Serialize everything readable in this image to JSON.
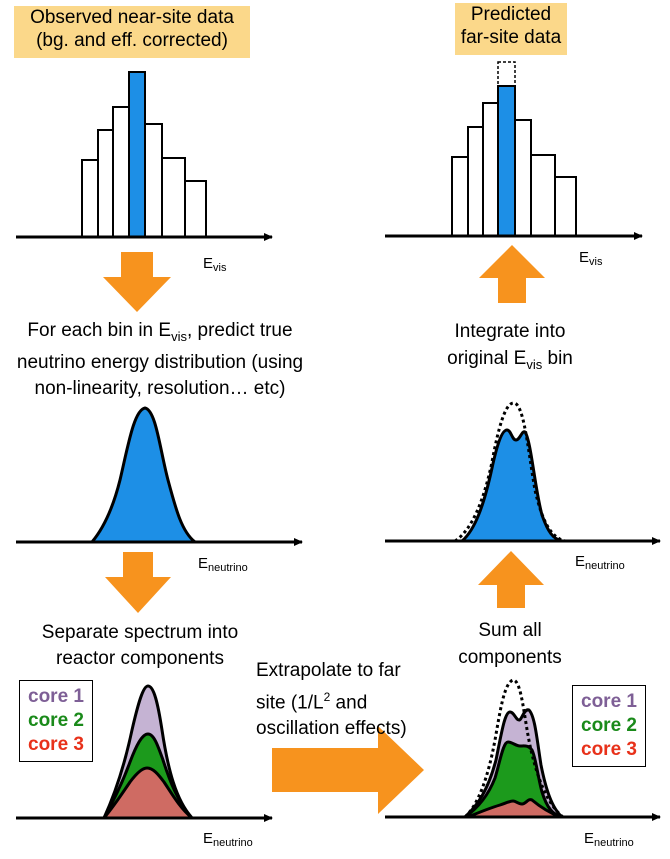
{
  "boxes": {
    "near_title_1": "Observed near-site data",
    "near_title_2": "(bg. and eff. corrected)",
    "far_title_1": "Predicted",
    "far_title_2": "far-site data"
  },
  "axes": {
    "evis_main": "E",
    "evis_sub": "vis",
    "eneu_main": "E",
    "eneu_sub": "neutrino"
  },
  "steps": {
    "predict_1a": "For each bin in E",
    "predict_1b": "vis",
    "predict_1c": ", predict true",
    "predict_2": "neutrino energy distribution (using",
    "predict_3": "non-linearity, resolution… etc)",
    "integrate_1": "Integrate into",
    "integrate_2a": "original E",
    "integrate_2b": "vis",
    "integrate_2c": " bin",
    "separate_1": "Separate spectrum into",
    "separate_2": "reactor components",
    "sum_1": "Sum all",
    "sum_2": "components",
    "extrap_1": "Extrapolate to far",
    "extrap_2a": "site (1/L",
    "extrap_2b": "2",
    "extrap_2c": " and",
    "extrap_3": "oscillation effects)"
  },
  "legend": {
    "items": [
      "core 1",
      "core 2",
      "core 3"
    ],
    "colors": [
      "#7e5f96",
      "#1a8a1a",
      "#e8311a"
    ]
  },
  "colors": {
    "highlight_box": "#fbd88a",
    "arrow": "#f7931e",
    "blue": "#1d8fe6",
    "core1_fill": "#c5b3d3",
    "core2_fill": "#1c9a1c",
    "core3_fill": "#cf6b63"
  }
}
